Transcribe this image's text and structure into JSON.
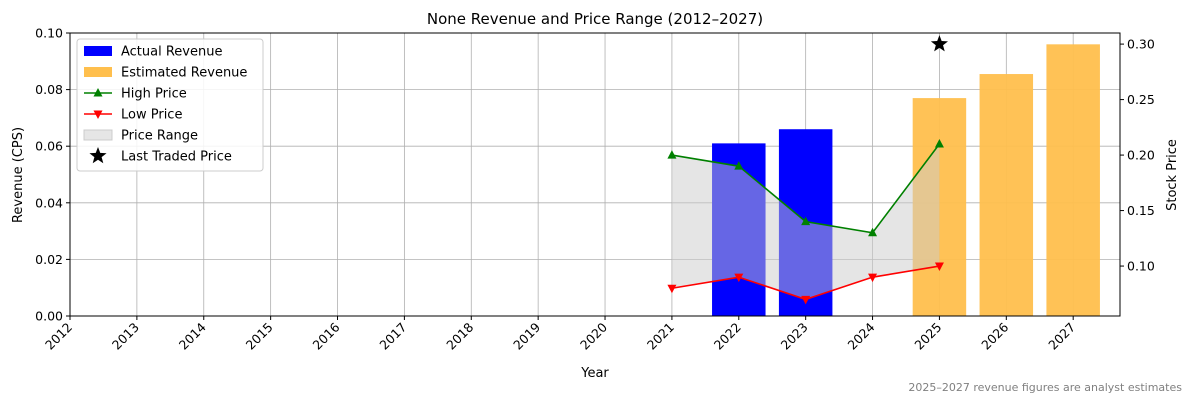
{
  "chart_data": {
    "type": "bar",
    "title": "None Revenue and Price Range (2012–2027)",
    "xlabel": "Year",
    "ylabel_left": "Revenue (CPS)",
    "ylabel_right": "Stock Price",
    "x_ticks": [
      "2012",
      "2013",
      "2014",
      "2015",
      "2016",
      "2017",
      "2018",
      "2019",
      "2020",
      "2021",
      "2022",
      "2023",
      "2024",
      "2025",
      "2026",
      "2027"
    ],
    "ylim_left": [
      0,
      0.1
    ],
    "left_ticks": [
      "0.00",
      "0.02",
      "0.04",
      "0.06",
      "0.08",
      "0.10"
    ],
    "ylim_right": [
      0.055,
      0.31
    ],
    "right_ticks": [
      "0.10",
      "0.15",
      "0.20",
      "0.25",
      "0.30"
    ],
    "grid": true,
    "legend_position": "top-left",
    "actual_revenue": {
      "name": "Actual Revenue",
      "color": "#0000ff",
      "x": [
        "2022",
        "2023"
      ],
      "values": [
        0.061,
        0.066
      ]
    },
    "estimated_revenue": {
      "name": "Estimated Revenue",
      "color": "#ffbf4d",
      "x": [
        "2025",
        "2026",
        "2027"
      ],
      "values": [
        0.077,
        0.0855,
        0.096
      ]
    },
    "high_price": {
      "name": "High Price",
      "color": "#008000",
      "x": [
        "2021",
        "2022",
        "2023",
        "2024",
        "2025"
      ],
      "values": [
        0.2,
        0.19,
        0.14,
        0.13,
        0.21
      ]
    },
    "low_price": {
      "name": "Low Price",
      "color": "#ff0000",
      "x": [
        "2021",
        "2022",
        "2023",
        "2024",
        "2025"
      ],
      "values": [
        0.08,
        0.09,
        0.07,
        0.09,
        0.1
      ]
    },
    "price_range": {
      "name": "Price Range",
      "color": "#d9d9d9"
    },
    "last_traded": {
      "name": "Last Traded Price",
      "x": "2025",
      "value": 0.3
    },
    "footnote": "2025–2027 revenue figures are analyst estimates"
  }
}
